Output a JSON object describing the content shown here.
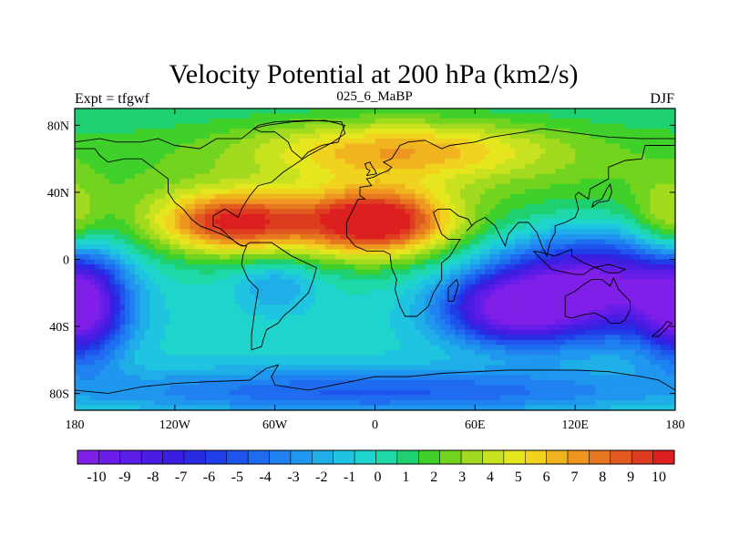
{
  "chart_data": {
    "type": "heatmap",
    "title": "Velocity Potential at 200 hPa (km2/s)",
    "left_string": "Expt = tfgwf",
    "center_string": "025_6_MaBP",
    "right_string": "DJF",
    "x_ticks": [
      {
        "value": -180,
        "label": "180"
      },
      {
        "value": -120,
        "label": "120W"
      },
      {
        "value": -60,
        "label": "60W"
      },
      {
        "value": 0,
        "label": "0"
      },
      {
        "value": 60,
        "label": "60E"
      },
      {
        "value": 120,
        "label": "120E"
      },
      {
        "value": 180,
        "label": "180"
      }
    ],
    "y_ticks": [
      {
        "value": 80,
        "label": "80N"
      },
      {
        "value": 40,
        "label": "40N"
      },
      {
        "value": 0,
        "label": "0"
      },
      {
        "value": -40,
        "label": "40S"
      },
      {
        "value": -80,
        "label": "80S"
      }
    ],
    "xlim": [
      -180,
      180
    ],
    "ylim": [
      -90,
      90
    ],
    "levels": [
      -10.5,
      10.5
    ],
    "colorbar": {
      "labels": [
        "-10",
        "-9",
        "-8",
        "-7",
        "-6",
        "-5",
        "-4",
        "-3",
        "-2",
        "-1",
        "0",
        "1",
        "2",
        "3",
        "4",
        "5",
        "6",
        "7",
        "8",
        "9",
        "10"
      ],
      "colors": [
        "#7f1fe8",
        "#6a1de8",
        "#5a1ce6",
        "#4a1ce4",
        "#3a1ee2",
        "#2a2ae4",
        "#1f3ee8",
        "#1f55ec",
        "#1f6cf0",
        "#1f82f0",
        "#1f97ee",
        "#1faee8",
        "#1fc4e0",
        "#1fd4cc",
        "#1fd8a8",
        "#1fd070",
        "#3fd02a",
        "#72d41f",
        "#a2da1f",
        "#c8e21f",
        "#e6e61f",
        "#f0d21f",
        "#f0b41f",
        "#ee961f",
        "#e6781f",
        "#e25a1f",
        "#de3c1f",
        "#dc1f1f"
      ]
    },
    "centers": [
      {
        "lon": 0,
        "lat": 22,
        "value": 10.2,
        "rx": 45,
        "ry": 20
      },
      {
        "lon": -85,
        "lat": 22,
        "value": 8.5,
        "rx": 45,
        "ry": 18
      },
      {
        "lon": 15,
        "lat": 65,
        "value": 5.0,
        "rx": 90,
        "ry": 18
      },
      {
        "lon": 130,
        "lat": -15,
        "value": -10.5,
        "rx": 60,
        "ry": 30
      },
      {
        "lon": -175,
        "lat": -30,
        "value": -8.5,
        "rx": 25,
        "ry": 30
      },
      {
        "lon": 80,
        "lat": -30,
        "value": -8.0,
        "rx": 40,
        "ry": 20
      },
      {
        "lon": 175,
        "lat": 20,
        "value": 3.0,
        "rx": 20,
        "ry": 25
      },
      {
        "lon": -60,
        "lat": -15,
        "value": -2.5,
        "rx": 25,
        "ry": 15
      },
      {
        "lon": 0,
        "lat": -80,
        "value": -5.0,
        "rx": 200,
        "ry": 15
      }
    ],
    "coastlines": [
      {
        "name": "americas",
        "points": [
          [
            -180,
            70
          ],
          [
            -165,
            72
          ],
          [
            -155,
            70
          ],
          [
            -140,
            70
          ],
          [
            -130,
            72
          ],
          [
            -120,
            68
          ],
          [
            -105,
            66
          ],
          [
            -95,
            72
          ],
          [
            -80,
            72
          ],
          [
            -70,
            80
          ],
          [
            -60,
            82
          ],
          [
            -40,
            83
          ],
          [
            -20,
            82
          ],
          [
            -18,
            75
          ],
          [
            -25,
            70
          ],
          [
            -40,
            62
          ],
          [
            -55,
            52
          ],
          [
            -62,
            46
          ],
          [
            -70,
            44
          ],
          [
            -75,
            38
          ],
          [
            -80,
            30
          ],
          [
            -82,
            25
          ],
          [
            -90,
            30
          ],
          [
            -97,
            26
          ],
          [
            -97,
            20
          ],
          [
            -92,
            18
          ],
          [
            -88,
            14
          ],
          [
            -82,
            9
          ],
          [
            -78,
            8
          ],
          [
            -75,
            10
          ],
          [
            -62,
            10
          ],
          [
            -50,
            2
          ],
          [
            -35,
            -5
          ],
          [
            -37,
            -12
          ],
          [
            -40,
            -20
          ],
          [
            -48,
            -28
          ],
          [
            -55,
            -34
          ],
          [
            -58,
            -38
          ],
          [
            -65,
            -42
          ],
          [
            -67,
            -48
          ],
          [
            -68,
            -52
          ],
          [
            -74,
            -54
          ],
          [
            -74,
            -45
          ],
          [
            -72,
            -30
          ],
          [
            -70,
            -18
          ],
          [
            -76,
            -12
          ],
          [
            -80,
            -3
          ],
          [
            -79,
            3
          ],
          [
            -77,
            8
          ],
          [
            -80,
            8
          ],
          [
            -86,
            12
          ],
          [
            -92,
            15
          ],
          [
            -97,
            17
          ],
          [
            -105,
            20
          ],
          [
            -110,
            24
          ],
          [
            -115,
            30
          ],
          [
            -120,
            34
          ],
          [
            -124,
            40
          ],
          [
            -124,
            48
          ],
          [
            -132,
            54
          ],
          [
            -140,
            60
          ],
          [
            -150,
            60
          ],
          [
            -160,
            58
          ],
          [
            -165,
            62
          ],
          [
            -168,
            66
          ],
          [
            -180,
            66
          ]
        ]
      },
      {
        "name": "eurasia-africa",
        "points": [
          [
            -10,
            36
          ],
          [
            -17,
            22
          ],
          [
            -17,
            14
          ],
          [
            -12,
            8
          ],
          [
            -5,
            5
          ],
          [
            5,
            5
          ],
          [
            9,
            3
          ],
          [
            10,
            -5
          ],
          [
            13,
            -12
          ],
          [
            12,
            -18
          ],
          [
            15,
            -28
          ],
          [
            18,
            -34
          ],
          [
            25,
            -34
          ],
          [
            32,
            -28
          ],
          [
            35,
            -20
          ],
          [
            40,
            -12
          ],
          [
            40,
            -2
          ],
          [
            45,
            2
          ],
          [
            51,
            12
          ],
          [
            44,
            12
          ],
          [
            40,
            15
          ],
          [
            35,
            28
          ],
          [
            38,
            30
          ],
          [
            45,
            30
          ],
          [
            50,
            26
          ],
          [
            56,
            24
          ],
          [
            58,
            20
          ],
          [
            55,
            17
          ],
          [
            60,
            22
          ],
          [
            66,
            25
          ],
          [
            72,
            20
          ],
          [
            78,
            8
          ],
          [
            80,
            15
          ],
          [
            86,
            22
          ],
          [
            92,
            22
          ],
          [
            97,
            16
          ],
          [
            100,
            8
          ],
          [
            103,
            2
          ],
          [
            105,
            10
          ],
          [
            108,
            16
          ],
          [
            108,
            20
          ],
          [
            114,
            22
          ],
          [
            120,
            25
          ],
          [
            122,
            30
          ],
          [
            120,
            38
          ],
          [
            122,
            40
          ],
          [
            128,
            36
          ],
          [
            129,
            42
          ],
          [
            140,
            48
          ],
          [
            140,
            55
          ],
          [
            150,
            59
          ],
          [
            160,
            60
          ],
          [
            162,
            68
          ],
          [
            180,
            68
          ],
          [
            180,
            72
          ],
          [
            160,
            72
          ],
          [
            140,
            73
          ],
          [
            115,
            76
          ],
          [
            100,
            78
          ],
          [
            90,
            76
          ],
          [
            70,
            73
          ],
          [
            60,
            70
          ],
          [
            45,
            68
          ],
          [
            40,
            66
          ],
          [
            30,
            71
          ],
          [
            20,
            70
          ],
          [
            15,
            68
          ],
          [
            10,
            60
          ],
          [
            5,
            58
          ],
          [
            10,
            55
          ],
          [
            8,
            53
          ],
          [
            3,
            51
          ],
          [
            -1,
            49
          ],
          [
            -5,
            48
          ],
          [
            -2,
            44
          ],
          [
            -9,
            43
          ],
          [
            -9,
            38
          ],
          [
            -6,
            36
          ],
          [
            -10,
            36
          ]
        ]
      },
      {
        "name": "australia",
        "points": [
          [
            114,
            -22
          ],
          [
            114,
            -34
          ],
          [
            118,
            -35
          ],
          [
            125,
            -33
          ],
          [
            132,
            -32
          ],
          [
            138,
            -35
          ],
          [
            141,
            -38
          ],
          [
            147,
            -38
          ],
          [
            150,
            -36
          ],
          [
            153,
            -30
          ],
          [
            153,
            -25
          ],
          [
            146,
            -18
          ],
          [
            143,
            -11
          ],
          [
            141,
            -16
          ],
          [
            136,
            -12
          ],
          [
            130,
            -12
          ],
          [
            125,
            -15
          ],
          [
            120,
            -19
          ],
          [
            114,
            -22
          ]
        ]
      },
      {
        "name": "greenland",
        "points": [
          [
            -73,
            78
          ],
          [
            -68,
            76
          ],
          [
            -60,
            76
          ],
          [
            -52,
            70
          ],
          [
            -50,
            65
          ],
          [
            -44,
            60
          ],
          [
            -40,
            64
          ],
          [
            -32,
            68
          ],
          [
            -22,
            70
          ],
          [
            -20,
            76
          ],
          [
            -18,
            80
          ],
          [
            -30,
            83
          ],
          [
            -50,
            82
          ],
          [
            -65,
            80
          ],
          [
            -73,
            78
          ]
        ]
      },
      {
        "name": "antarctica",
        "points": [
          [
            -180,
            -78
          ],
          [
            -160,
            -80
          ],
          [
            -140,
            -76
          ],
          [
            -120,
            -74
          ],
          [
            -100,
            -73
          ],
          [
            -75,
            -72
          ],
          [
            -65,
            -65
          ],
          [
            -58,
            -63
          ],
          [
            -62,
            -70
          ],
          [
            -60,
            -75
          ],
          [
            -40,
            -78
          ],
          [
            -20,
            -74
          ],
          [
            0,
            -70
          ],
          [
            20,
            -70
          ],
          [
            40,
            -68
          ],
          [
            60,
            -67
          ],
          [
            80,
            -66
          ],
          [
            100,
            -66
          ],
          [
            120,
            -66
          ],
          [
            140,
            -67
          ],
          [
            160,
            -70
          ],
          [
            170,
            -72
          ],
          [
            180,
            -78
          ]
        ]
      },
      {
        "name": "uk",
        "points": [
          [
            -5,
            50
          ],
          [
            1,
            51
          ],
          [
            0,
            53
          ],
          [
            -2,
            56
          ],
          [
            -3,
            58
          ],
          [
            -6,
            57
          ],
          [
            -5,
            54
          ],
          [
            -3,
            53
          ],
          [
            -5,
            50
          ]
        ]
      },
      {
        "name": "japan",
        "points": [
          [
            130,
            31
          ],
          [
            134,
            34
          ],
          [
            140,
            35
          ],
          [
            142,
            40
          ],
          [
            141,
            45
          ],
          [
            139,
            42
          ],
          [
            136,
            36
          ],
          [
            131,
            34
          ],
          [
            130,
            31
          ]
        ]
      },
      {
        "name": "madagascar",
        "points": [
          [
            44,
            -25
          ],
          [
            47,
            -25
          ],
          [
            50,
            -15
          ],
          [
            49,
            -12
          ],
          [
            44,
            -17
          ],
          [
            44,
            -25
          ]
        ]
      },
      {
        "name": "indonesia",
        "points": [
          [
            95,
            5
          ],
          [
            102,
            -2
          ],
          [
            106,
            -6
          ],
          [
            115,
            -8
          ],
          [
            120,
            -9
          ],
          [
            125,
            -9
          ],
          [
            131,
            -5
          ],
          [
            140,
            -3
          ],
          [
            150,
            -6
          ],
          [
            146,
            -8
          ],
          [
            140,
            -8
          ],
          [
            125,
            -2
          ],
          [
            118,
            2
          ],
          [
            118,
            6
          ],
          [
            108,
            2
          ],
          [
            100,
            4
          ],
          [
            95,
            5
          ]
        ]
      },
      {
        "name": "new-zealand",
        "points": [
          [
            166,
            -46
          ],
          [
            172,
            -41
          ],
          [
            175,
            -37
          ],
          [
            178,
            -38
          ],
          [
            174,
            -42
          ],
          [
            170,
            -46
          ],
          [
            166,
            -46
          ]
        ]
      }
    ]
  }
}
